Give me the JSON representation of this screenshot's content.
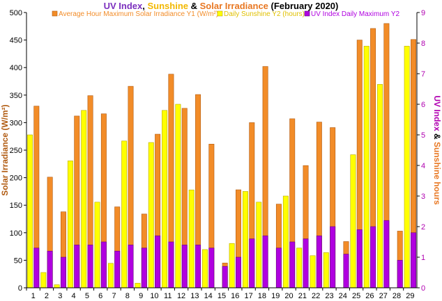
{
  "chart_data": {
    "type": "bar",
    "title": {
      "parts": [
        {
          "text": "UV Index",
          "color": "#7B2FBE"
        },
        {
          "text": ", ",
          "color": "#000000"
        },
        {
          "text": "Sunshine",
          "color": "#F2B800"
        },
        {
          "text": " & ",
          "color": "#000000"
        },
        {
          "text": "Solar Irradiance",
          "color": "#E87722"
        },
        {
          "text": " (February 2020)",
          "color": "#000000"
        }
      ]
    },
    "ylabel_left": "Solar Irradiance (W/m²)",
    "ylabel_right": {
      "parts": [
        {
          "text": "UV Index",
          "color": "#B000B0"
        },
        {
          "text": " & ",
          "color": "#000000"
        },
        {
          "text": "Sunshine hours",
          "color": "#E87722"
        }
      ]
    },
    "ylim_left": [
      0,
      500
    ],
    "yticks_left": [
      0,
      50,
      100,
      150,
      200,
      250,
      300,
      350,
      400,
      450,
      500
    ],
    "ylim_right": [
      0,
      9
    ],
    "yticks_right": [
      0,
      1,
      2,
      3,
      4,
      5,
      6,
      7,
      8,
      9
    ],
    "categories": [
      "1",
      "2",
      "3",
      "4",
      "5",
      "6",
      "7",
      "8",
      "9",
      "10",
      "11",
      "12",
      "13",
      "14",
      "15",
      "16",
      "17",
      "18",
      "19",
      "20",
      "21",
      "22",
      "23",
      "24",
      "25",
      "26",
      "27",
      "28",
      "29"
    ],
    "series": [
      {
        "name": "Daily Sunshine Y2 (hours)",
        "axis": "right",
        "color": "#FFFF00",
        "border": "#B8A800",
        "values": [
          5.0,
          0.5,
          0.1,
          4.15,
          5.8,
          2.8,
          0.8,
          4.8,
          0.15,
          4.75,
          5.8,
          6.0,
          3.2,
          1.25,
          0,
          1.45,
          3.15,
          2.8,
          0,
          3.0,
          1.3,
          1.05,
          1.15,
          0,
          4.35,
          7.9,
          6.65,
          0,
          7.9
        ]
      },
      {
        "name": "Average Hour Maximum Solar Irradiance Y1 (W/m²)",
        "axis": "left",
        "color": "#F28C28",
        "border": "#B05A10",
        "values": [
          330,
          201,
          138,
          312,
          349,
          316,
          147,
          366,
          134,
          279,
          388,
          326,
          351,
          261,
          45,
          178,
          300,
          402,
          152,
          307,
          222,
          301,
          291,
          84,
          450,
          471,
          480,
          103,
          451
        ]
      },
      {
        "name": "UV Index Daily Maximum Y2",
        "axis": "right",
        "color": "#B000E0",
        "border": "#600080",
        "values": [
          1.3,
          1.2,
          1.0,
          1.4,
          1.4,
          1.5,
          1.2,
          1.4,
          1.3,
          1.7,
          1.5,
          1.4,
          1.4,
          1.3,
          0.7,
          1.0,
          1.6,
          1.7,
          1.3,
          1.5,
          1.6,
          1.7,
          2.0,
          1.1,
          1.9,
          2.0,
          2.2,
          0.9,
          1.8
        ]
      }
    ],
    "legend_position": "top-center",
    "grid": false
  }
}
